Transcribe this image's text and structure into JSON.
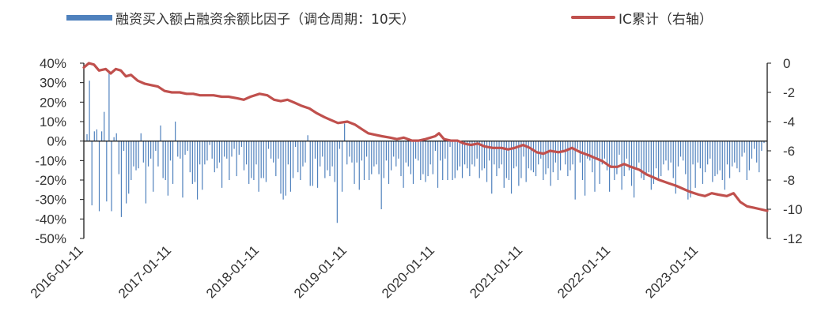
{
  "chart_data": {
    "type": "bar+line",
    "title": "",
    "x_ticks": [
      "2016-01-11",
      "2017-01-11",
      "2018-01-11",
      "2019-01-11",
      "2020-01-11",
      "2021-01-11",
      "2022-01-11",
      "2023-01-11"
    ],
    "x_range": [
      "2016-01-11",
      "2023-10-23"
    ],
    "y_left": {
      "ticks": [
        "40%",
        "30%",
        "20%",
        "10%",
        "0%",
        "-10%",
        "-20%",
        "-30%",
        "-40%",
        "-50%"
      ],
      "range": [
        -50,
        40
      ],
      "unit": "%"
    },
    "y_right": {
      "ticks": [
        "0",
        "-2",
        "-4",
        "-6",
        "-8",
        "-10",
        "-12"
      ],
      "range": [
        -12,
        0
      ]
    },
    "series": [
      {
        "name": "融资买入额占融资余额比因子（调仓周期：10天）",
        "type": "bar",
        "axis": "left",
        "color": "#4f81bd",
        "values": [
          3.5,
          31,
          -33,
          5,
          6,
          -36,
          5,
          15,
          -31,
          35,
          -36,
          2,
          4,
          -17,
          -39,
          -5,
          -32,
          -27,
          -20,
          -13,
          -15,
          -14,
          4,
          -11,
          -32,
          -13,
          -9,
          -26,
          -5,
          -13,
          8,
          -19,
          -20,
          -28,
          -10,
          -22,
          10,
          -8,
          -9,
          -29,
          -7,
          -5,
          -16,
          -22,
          -21,
          -30,
          -12,
          -25,
          -12,
          -10,
          -2,
          -9,
          -16,
          -14,
          -11,
          -24,
          -8,
          -9,
          -20,
          -8,
          -4,
          -18,
          -7,
          -3,
          -15,
          -12,
          -22,
          -19,
          -20,
          -12,
          -26,
          -19,
          -19,
          -21,
          -4,
          -9,
          -11,
          -18,
          -9,
          -27,
          -30,
          -28,
          -12,
          -26,
          -19,
          -3,
          -16,
          -20,
          -13,
          -11,
          3,
          -23,
          -23,
          -9,
          -24,
          -13,
          -8,
          -19,
          -15,
          -18,
          -13,
          -21,
          -42,
          -4,
          -26,
          9,
          -12,
          -8,
          -11,
          -22,
          -11,
          -25,
          -10,
          -20,
          -8,
          -20,
          -17,
          -13,
          -12,
          -17,
          -35,
          -19,
          -10,
          -22,
          -15,
          -8,
          -13,
          -9,
          -18,
          -24,
          -11,
          -13,
          -17,
          -22,
          -9,
          -10,
          -20,
          -17,
          -21,
          -18,
          -12,
          -17,
          -5,
          -24,
          -10,
          -20,
          -9,
          -20,
          -3,
          -20,
          -19,
          -15,
          -13,
          -19,
          -12,
          -14,
          -18,
          -12,
          -13,
          -9,
          -19,
          -15,
          -14,
          -21,
          -10,
          -27,
          -12,
          -18,
          -14,
          -12,
          -24,
          -19,
          -20,
          -27,
          -14,
          -13,
          -23,
          -19,
          -8,
          -21,
          -14,
          -15,
          -16,
          -18,
          -12,
          -9,
          -20,
          -17,
          -14,
          -23,
          -16,
          -11,
          -20,
          -15,
          -6,
          -12,
          -18,
          -15,
          -12,
          -30,
          -4,
          -11,
          -20,
          -28,
          -9,
          -10,
          -16,
          -26,
          -9,
          -22,
          -12,
          -9,
          -15,
          -26,
          -13,
          -20,
          -17,
          -7,
          -25,
          -18,
          -9,
          -15,
          -23,
          -29,
          -14,
          -11,
          -19,
          -20,
          -17,
          -16,
          -25,
          -22,
          -14,
          -19,
          -18,
          -12,
          -10,
          -15,
          -11,
          -19,
          -27,
          -13,
          -8,
          -10,
          -17,
          -30,
          -29,
          -12,
          -24,
          -11,
          -14,
          -22,
          -16,
          -12,
          -9,
          -21,
          -18,
          -17,
          -15,
          -20,
          -25,
          -12,
          -19,
          -13,
          -11,
          -14,
          -16,
          -8,
          -6,
          -20,
          -15,
          -9,
          -4,
          -11,
          -16,
          -5,
          -1
        ]
      },
      {
        "name": "IC累计（右轴）",
        "type": "line",
        "axis": "right",
        "color": "#c0504d",
        "points": [
          [
            "2016-01-11",
            -0.3
          ],
          [
            "2016-02-01",
            0.0
          ],
          [
            "2016-02-22",
            -0.1
          ],
          [
            "2016-03-14",
            -0.5
          ],
          [
            "2016-04-11",
            -0.4
          ],
          [
            "2016-05-02",
            -0.7
          ],
          [
            "2016-05-23",
            -0.4
          ],
          [
            "2016-06-13",
            -0.5
          ],
          [
            "2016-07-04",
            -0.9
          ],
          [
            "2016-07-25",
            -0.8
          ],
          [
            "2016-08-22",
            -1.2
          ],
          [
            "2016-09-19",
            -1.4
          ],
          [
            "2016-10-17",
            -1.5
          ],
          [
            "2016-11-14",
            -1.6
          ],
          [
            "2016-12-12",
            -1.9
          ],
          [
            "2017-01-11",
            -2.0
          ],
          [
            "2017-02-13",
            -2.0
          ],
          [
            "2017-03-13",
            -2.1
          ],
          [
            "2017-04-10",
            -2.1
          ],
          [
            "2017-05-08",
            -2.2
          ],
          [
            "2017-06-05",
            -2.2
          ],
          [
            "2017-07-03",
            -2.2
          ],
          [
            "2017-08-07",
            -2.3
          ],
          [
            "2017-09-04",
            -2.3
          ],
          [
            "2017-10-09",
            -2.4
          ],
          [
            "2017-11-06",
            -2.5
          ],
          [
            "2017-12-04",
            -2.3
          ],
          [
            "2018-01-11",
            -2.1
          ],
          [
            "2018-02-12",
            -2.2
          ],
          [
            "2018-03-12",
            -2.5
          ],
          [
            "2018-04-09",
            -2.6
          ],
          [
            "2018-05-07",
            -2.5
          ],
          [
            "2018-06-04",
            -2.7
          ],
          [
            "2018-07-02",
            -2.9
          ],
          [
            "2018-08-06",
            -3.1
          ],
          [
            "2018-09-03",
            -3.4
          ],
          [
            "2018-10-08",
            -3.7
          ],
          [
            "2018-11-05",
            -3.9
          ],
          [
            "2018-12-03",
            -4.1
          ],
          [
            "2019-01-11",
            -4.0
          ],
          [
            "2019-02-11",
            -4.2
          ],
          [
            "2019-03-11",
            -4.5
          ],
          [
            "2019-04-08",
            -4.8
          ],
          [
            "2019-05-06",
            -4.9
          ],
          [
            "2019-06-03",
            -5.0
          ],
          [
            "2019-07-08",
            -5.1
          ],
          [
            "2019-08-05",
            -5.2
          ],
          [
            "2019-09-02",
            -5.1
          ],
          [
            "2019-10-07",
            -5.3
          ],
          [
            "2019-11-04",
            -5.3
          ],
          [
            "2019-12-02",
            -5.2
          ],
          [
            "2020-01-11",
            -5.0
          ],
          [
            "2020-01-27",
            -4.8
          ],
          [
            "2020-02-17",
            -5.2
          ],
          [
            "2020-03-16",
            -5.3
          ],
          [
            "2020-04-13",
            -5.3
          ],
          [
            "2020-05-11",
            -5.5
          ],
          [
            "2020-06-08",
            -5.6
          ],
          [
            "2020-07-06",
            -5.5
          ],
          [
            "2020-08-03",
            -5.7
          ],
          [
            "2020-09-07",
            -5.8
          ],
          [
            "2020-10-12",
            -5.8
          ],
          [
            "2020-11-09",
            -5.9
          ],
          [
            "2020-12-07",
            -5.8
          ],
          [
            "2021-01-11",
            -5.6
          ],
          [
            "2021-02-08",
            -5.8
          ],
          [
            "2021-03-08",
            -6.1
          ],
          [
            "2021-04-05",
            -6.2
          ],
          [
            "2021-05-03",
            -6.0
          ],
          [
            "2021-06-07",
            -6.1
          ],
          [
            "2021-07-05",
            -6.0
          ],
          [
            "2021-08-02",
            -5.8
          ],
          [
            "2021-09-06",
            -6.1
          ],
          [
            "2021-10-11",
            -6.3
          ],
          [
            "2021-11-08",
            -6.5
          ],
          [
            "2021-12-06",
            -6.7
          ],
          [
            "2022-01-11",
            -7.1
          ],
          [
            "2022-02-07",
            -7.1
          ],
          [
            "2022-03-07",
            -6.9
          ],
          [
            "2022-04-04",
            -7.1
          ],
          [
            "2022-05-09",
            -7.3
          ],
          [
            "2022-06-06",
            -7.6
          ],
          [
            "2022-07-04",
            -7.8
          ],
          [
            "2022-08-01",
            -8.0
          ],
          [
            "2022-09-05",
            -8.2
          ],
          [
            "2022-10-10",
            -8.4
          ],
          [
            "2022-11-07",
            -8.6
          ],
          [
            "2022-12-05",
            -8.8
          ],
          [
            "2023-01-11",
            -9.0
          ],
          [
            "2023-02-06",
            -9.1
          ],
          [
            "2023-03-06",
            -8.9
          ],
          [
            "2023-04-03",
            -9.0
          ],
          [
            "2023-05-08",
            -9.1
          ],
          [
            "2023-06-05",
            -8.9
          ],
          [
            "2023-07-03",
            -9.5
          ],
          [
            "2023-07-31",
            -9.8
          ],
          [
            "2023-08-28",
            -9.9
          ],
          [
            "2023-09-25",
            -10.0
          ],
          [
            "2023-10-23",
            -10.1
          ]
        ]
      }
    ]
  }
}
